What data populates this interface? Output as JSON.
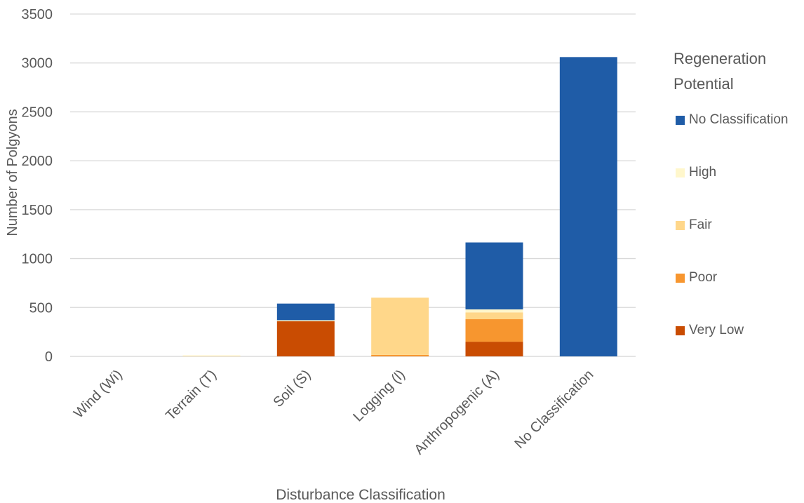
{
  "chart_data": {
    "type": "bar",
    "stacked": true,
    "categories": [
      "Wind (Wi)",
      "Terrain (T)",
      "Soil (S)",
      "Logging (l)",
      "Anthropogenic (A)",
      "No Classification"
    ],
    "series": [
      {
        "name": "Very Low",
        "color": "#C94C02",
        "values": [
          0,
          0,
          360,
          0,
          150,
          0
        ]
      },
      {
        "name": "Poor",
        "color": "#F7962F",
        "values": [
          0,
          0,
          0,
          15,
          230,
          0
        ]
      },
      {
        "name": "Fair",
        "color": "#FFD78A",
        "values": [
          0,
          5,
          0,
          585,
          70,
          0
        ]
      },
      {
        "name": "High",
        "color": "#FFF7CC",
        "values": [
          0,
          5,
          10,
          0,
          30,
          0
        ]
      },
      {
        "name": "No Classification",
        "color": "#1F5CA7",
        "values": [
          0,
          0,
          170,
          0,
          685,
          3060
        ]
      }
    ],
    "xlabel": "Disturbance Classification",
    "ylabel": "Number of Polgyons",
    "ylim": [
      0,
      3500
    ],
    "yticks": [
      0,
      500,
      1000,
      1500,
      2000,
      2500,
      3000,
      3500
    ],
    "grid": true,
    "legend_title": "Regeneration Potential",
    "legend_position": "right"
  }
}
